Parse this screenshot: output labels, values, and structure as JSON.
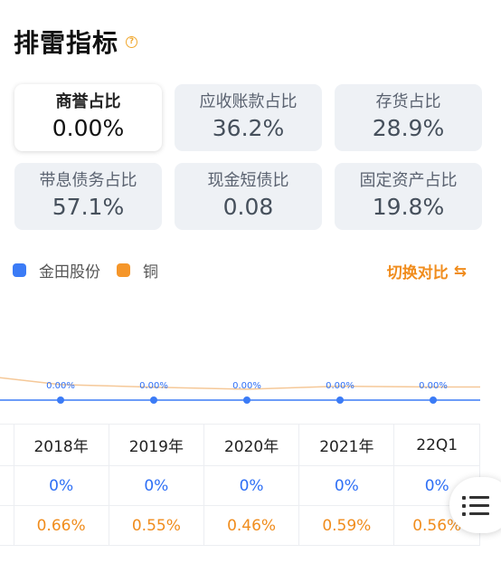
{
  "header": {
    "title": "排雷指标",
    "help_icon": "question-circle-icon"
  },
  "metrics": [
    {
      "label": "商誉占比",
      "value": "0.00%",
      "active": true
    },
    {
      "label": "应收账款占比",
      "value": "36.2%"
    },
    {
      "label": "存货占比",
      "value": "28.9%"
    },
    {
      "label": "带息债务占比",
      "value": "57.1%"
    },
    {
      "label": "现金短债比",
      "value": "0.08"
    },
    {
      "label": "固定资产占比",
      "value": "19.8%"
    }
  ],
  "legend": {
    "company": {
      "name": "金田股份",
      "color": "#3b7bf6"
    },
    "industry": {
      "name": "铜",
      "color": "#f5962a"
    }
  },
  "switch": {
    "label": "切换对比",
    "icon": "switch-icon"
  },
  "chart_data": {
    "type": "line",
    "categories": [
      "2018年",
      "2019年",
      "2020年",
      "2021年",
      "22Q1"
    ],
    "series": [
      {
        "name": "金田股份",
        "values": [
          0,
          0,
          0,
          0,
          0
        ],
        "labels": [
          "0.00%",
          "0.00%",
          "0.00%",
          "0.00%",
          "0.00%"
        ],
        "color": "#3b7bf6"
      },
      {
        "name": "铜",
        "values": [
          0.66,
          0.55,
          0.46,
          0.59,
          0.56
        ],
        "color": "#f5c898"
      }
    ],
    "ylim": [
      0,
      1
    ]
  },
  "table": {
    "headers": [
      "2018年",
      "2019年",
      "2020年",
      "2021年",
      "22Q1"
    ],
    "company_row": [
      "0%",
      "0%",
      "0%",
      "0%",
      "0%"
    ],
    "industry_row": [
      "0.66%",
      "0.55%",
      "0.46%",
      "0.59%",
      "0.56%"
    ]
  },
  "fab": {
    "icon": "list-menu-icon"
  }
}
